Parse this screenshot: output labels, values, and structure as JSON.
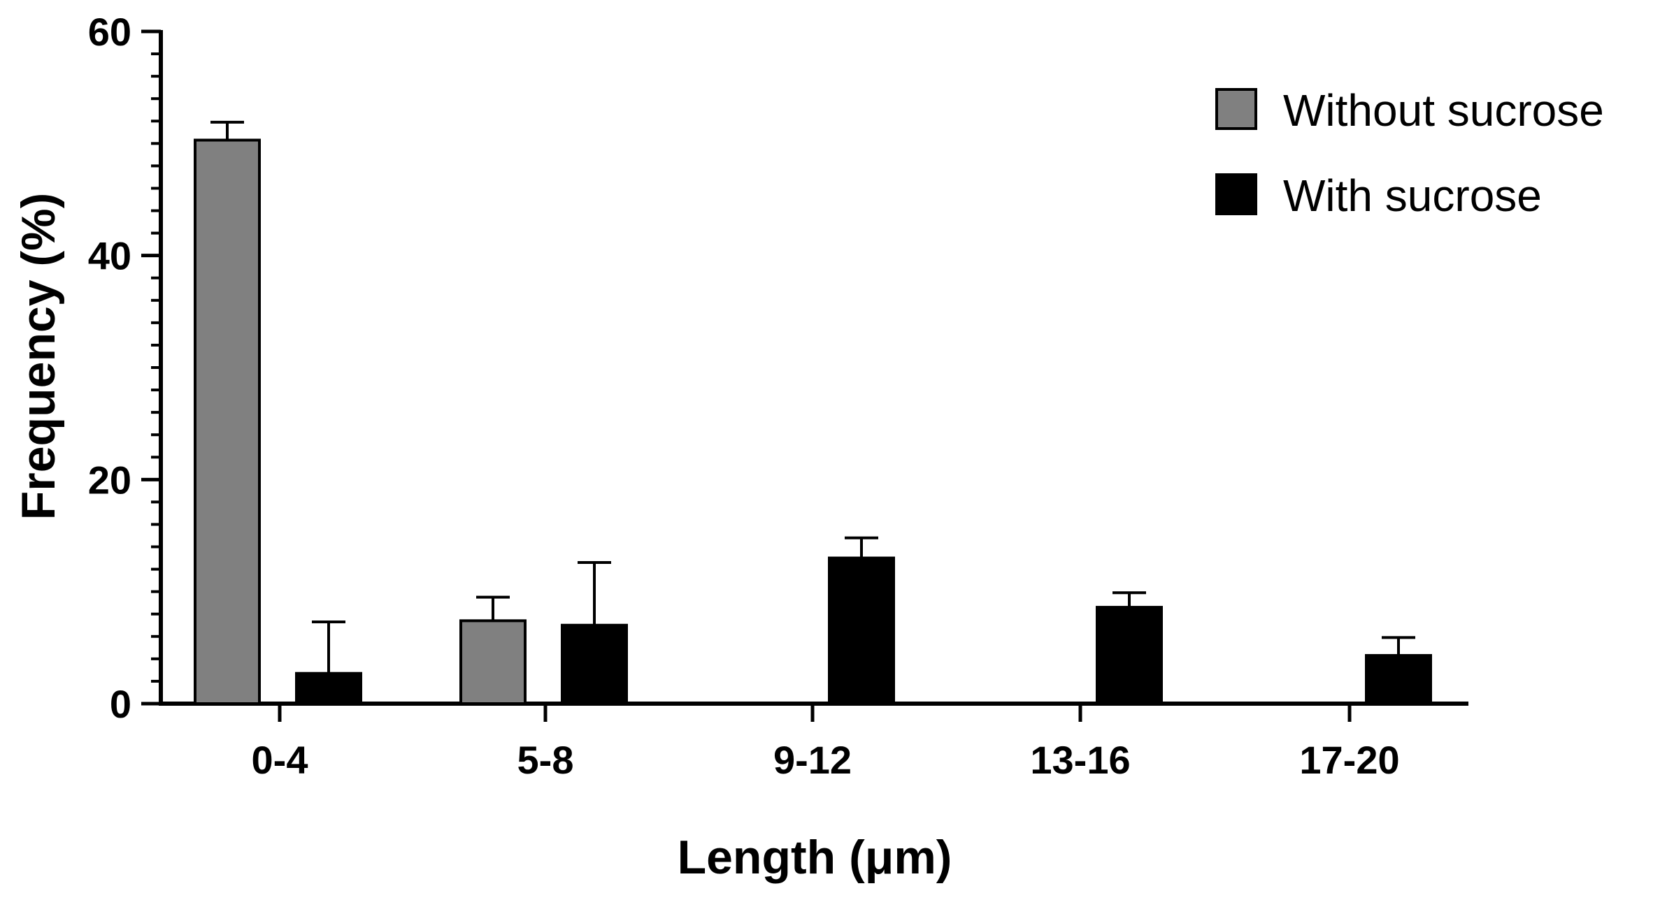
{
  "chart_data": {
    "type": "bar",
    "title": "",
    "xlabel": "Length (μm)",
    "ylabel": "Frequency (%)",
    "categories": [
      "0-4",
      "5-8",
      "9-12",
      "13-16",
      "17-20"
    ],
    "ylim": [
      0,
      60
    ],
    "yticks": [
      0,
      20,
      40,
      60
    ],
    "y_minor_step": 2,
    "grid": false,
    "legend_position": "top-right",
    "series": [
      {
        "name": "Without sucrose",
        "color": "#808080",
        "values": [
          50.3,
          7.4,
          0,
          0,
          0
        ],
        "errors": [
          1.6,
          2.1,
          0,
          0,
          0
        ]
      },
      {
        "name": "With sucrose",
        "color": "#000000",
        "values": [
          2.7,
          7.0,
          13.0,
          8.6,
          4.3
        ],
        "errors": [
          4.6,
          5.6,
          1.8,
          1.3,
          1.6
        ]
      }
    ]
  }
}
